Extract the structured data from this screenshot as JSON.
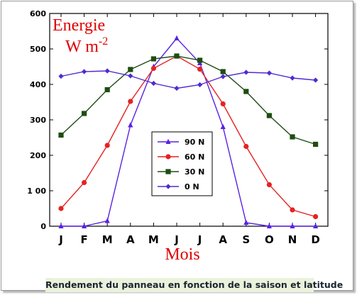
{
  "caption": "Rendement du panneau en fonction de la saison et latitude",
  "chart_data": {
    "type": "line",
    "title_line1": "Energie",
    "title_line2": "W m",
    "title_sup": "-2",
    "xlabel": "Mois",
    "ylabel": "",
    "ylim": [
      0,
      600
    ],
    "yticks": [
      "0",
      "1 00",
      "200",
      "300",
      "400",
      "500",
      "600"
    ],
    "ytick_values": [
      0,
      100,
      200,
      300,
      400,
      500,
      600
    ],
    "categories": [
      "J",
      "F",
      "M",
      "A",
      "M",
      "J",
      "J",
      "A",
      "S",
      "O",
      "N",
      "D"
    ],
    "grid": false,
    "legend_position": "center",
    "series": [
      {
        "name": "90 N",
        "color": "#5a22e0",
        "marker": "triangle",
        "values": [
          0,
          0,
          15,
          285,
          450,
          530,
          460,
          280,
          10,
          0,
          0,
          0
        ]
      },
      {
        "name": "60 N",
        "color": "#e52222",
        "marker": "circle",
        "values": [
          50,
          123,
          228,
          352,
          445,
          480,
          443,
          345,
          225,
          117,
          46,
          27
        ]
      },
      {
        "name": "30 N",
        "color": "#1d4d10",
        "marker": "square",
        "values": [
          257,
          318,
          385,
          442,
          472,
          480,
          468,
          436,
          380,
          312,
          252,
          231
        ]
      },
      {
        "name": "0 N",
        "color": "#4f2bd0",
        "marker": "diamond",
        "values": [
          423,
          436,
          438,
          424,
          403,
          389,
          399,
          422,
          434,
          432,
          418,
          412
        ]
      }
    ]
  }
}
